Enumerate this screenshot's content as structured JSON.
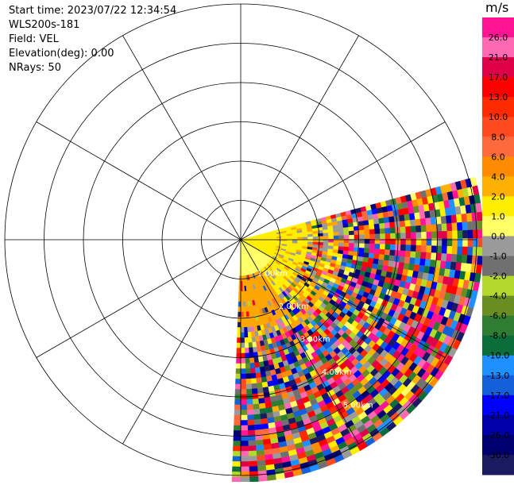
{
  "info": {
    "start_time": "Start time: 2023/07/22 12:34:54",
    "instrument": "WLS200s-181",
    "field": "Field: VEL",
    "elevation": "Elevation(deg): 0.00",
    "nrays": "NRays: 50"
  },
  "chart_data": {
    "type": "heatmap",
    "projection": "polar-ppi",
    "field": "VEL",
    "units": "m/s",
    "range_rings": [
      1,
      2,
      3,
      4,
      5,
      6
    ],
    "range_ring_labels": [
      "1.00km",
      "2.00km",
      "3.00km",
      "4.00km",
      "5.00km"
    ],
    "spokes_every_deg": 30,
    "sector_azimuth_deg": [
      75,
      180
    ],
    "colorbar": {
      "ticks": [
        "26.0",
        "21.0",
        "17.0",
        "13.0",
        "10.0",
        "8.0",
        "6.0",
        "4.0",
        "2.0",
        "1.0",
        "0.0",
        "-1.0",
        "-2.0",
        "-4.0",
        "-6.0",
        "-8.0",
        "-10.0",
        "-13.0",
        "-17.0",
        "-21.0",
        "-26.0",
        "-30.0"
      ],
      "colors": [
        "#ff1493",
        "#ff69b4",
        "#e0004a",
        "#ff0000",
        "#ff2a00",
        "#ff4b1f",
        "#ff6a3d",
        "#ff8c00",
        "#ffb000",
        "#ffee00",
        "#ffff66",
        "#9a9a9a",
        "#707070",
        "#b4d92d",
        "#6b8e23",
        "#2e7d32",
        "#0b6e3a",
        "#1e90ff",
        "#1460d8",
        "#0000ff",
        "#0000aa",
        "#000070",
        "#1a1a60"
      ]
    }
  }
}
